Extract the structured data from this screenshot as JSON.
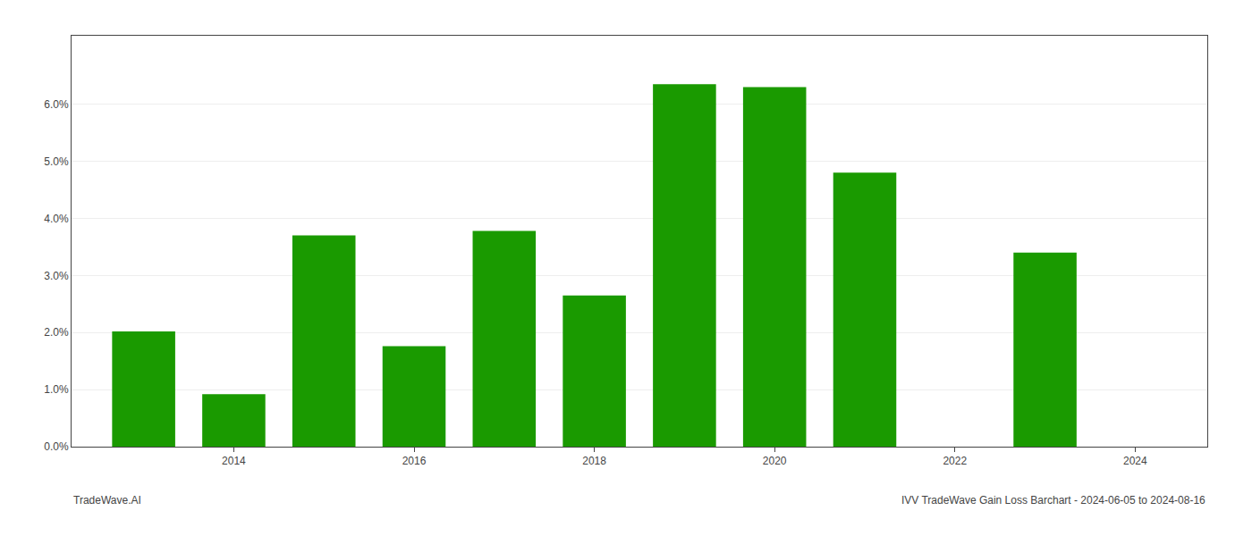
{
  "chart_data": {
    "type": "bar",
    "x": [
      2013,
      2014,
      2015,
      2016,
      2017,
      2018,
      2019,
      2020,
      2021,
      2023
    ],
    "values": [
      0.0202,
      0.0092,
      0.037,
      0.0176,
      0.0378,
      0.0265,
      0.0635,
      0.063,
      0.048,
      0.034
    ],
    "color": "#1a9a00",
    "xlim": [
      2012.2,
      2024.8
    ],
    "xticks": [
      2014,
      2016,
      2018,
      2020,
      2022,
      2024
    ],
    "ylim": [
      0,
      0.072
    ],
    "yticks": [
      {
        "value": 0.0,
        "label": "0.0%"
      },
      {
        "value": 0.01,
        "label": "1.0%"
      },
      {
        "value": 0.02,
        "label": "2.0%"
      },
      {
        "value": 0.03,
        "label": "3.0%"
      },
      {
        "value": 0.04,
        "label": "4.0%"
      },
      {
        "value": 0.05,
        "label": "5.0%"
      },
      {
        "value": 0.06,
        "label": "6.0%"
      }
    ],
    "grid": true,
    "annotations": [
      "TradeWave.AI",
      "IVV TradeWave Gain Loss Barchart - 2024-06-05 to 2024-08-16"
    ]
  }
}
